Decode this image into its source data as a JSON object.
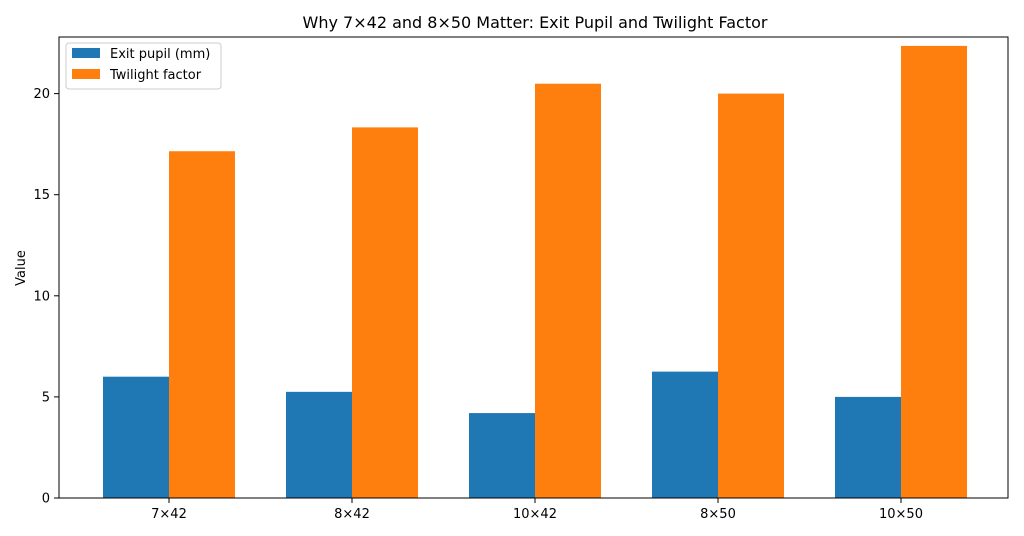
{
  "chart_data": {
    "type": "bar",
    "title": "Why 7×42 and 8×50 Matter: Exit Pupil and Twilight Factor",
    "xlabel": "",
    "ylabel": "Value",
    "ylim": [
      0,
      22.8
    ],
    "yticks": [
      0,
      5,
      10,
      15,
      20
    ],
    "categories": [
      "7×42",
      "8×42",
      "10×42",
      "8×50",
      "10×50"
    ],
    "series": [
      {
        "name": "Exit pupil (mm)",
        "color": "#1f77b4",
        "values": [
          6.0,
          5.25,
          4.2,
          6.25,
          5.0
        ]
      },
      {
        "name": "Twilight factor",
        "color": "#ff7f0e",
        "values": [
          17.15,
          18.33,
          20.49,
          20.0,
          22.36
        ]
      }
    ],
    "legend_position": "top-left",
    "grid": false
  }
}
